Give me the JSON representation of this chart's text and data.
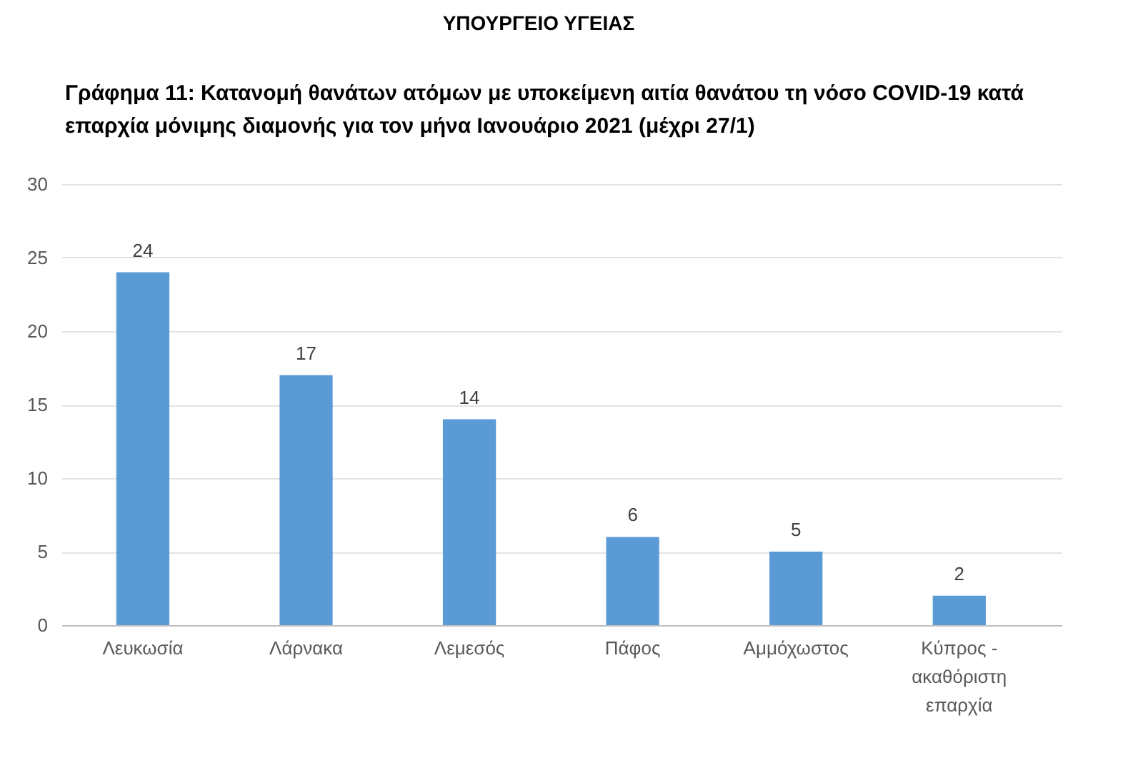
{
  "chart_data": {
    "type": "bar",
    "title": "Γράφημα 11: Κατανομή θανάτων ατόμων με υποκείμενη αιτία θανάτου τη νόσο COVID-19 κατά επαρχία μόνιμης διαμονής για τον μήνα Ιανουάριο 2021 (μέχρι 27/1)",
    "annotations": [
      "ΥΠΟΥΡΓΕΙΟ ΥΓΕΙΑΣ"
    ],
    "categories": [
      "Λευκωσία",
      "Λάρνακα",
      "Λεμεσός",
      "Πάφος",
      "Αμμόχωστος",
      "Κύπρος - ακαθόριστη επαρχία"
    ],
    "values": [
      24,
      17,
      14,
      6,
      5,
      2
    ],
    "color": "#5b9bd5",
    "ylim": [
      0,
      30
    ],
    "yticks": [
      0,
      5,
      10,
      15,
      20,
      25,
      30
    ],
    "grid": "y",
    "data_labels": true
  }
}
